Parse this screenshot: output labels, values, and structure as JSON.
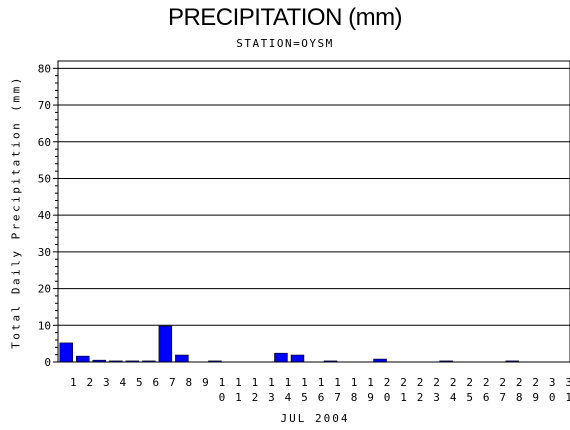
{
  "chart_data": {
    "type": "bar",
    "title": "PRECIPITATION (mm)",
    "subtitle": "STATION=OYSM",
    "xlabel": "JUL 2004",
    "ylabel": "Total Daily Precipitation (mm)",
    "ylim": [
      0,
      82
    ],
    "yticks": [
      0,
      10,
      20,
      30,
      40,
      50,
      60,
      70,
      80
    ],
    "grid": true,
    "bar_color": "#0000ff",
    "categories": [
      "1",
      "2",
      "3",
      "4",
      "5",
      "6",
      "7",
      "8",
      "9",
      "10",
      "11",
      "12",
      "13",
      "14",
      "15",
      "16",
      "17",
      "18",
      "19",
      "20",
      "21",
      "22",
      "23",
      "24",
      "25",
      "26",
      "27",
      "28",
      "29",
      "30",
      "31"
    ],
    "values": [
      5.2,
      1.6,
      0.5,
      0.3,
      0.3,
      0.3,
      9.8,
      1.9,
      0,
      0.3,
      0,
      0,
      0,
      2.4,
      1.9,
      0,
      0.3,
      0,
      0,
      0.8,
      0,
      0,
      0,
      0.3,
      0,
      0,
      0,
      0.3,
      0,
      0,
      0
    ]
  }
}
